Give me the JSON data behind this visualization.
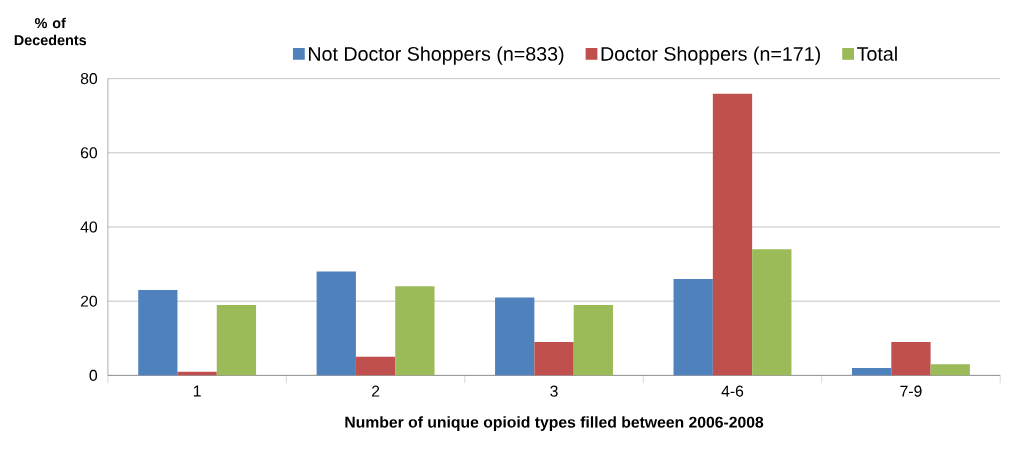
{
  "chart_data": {
    "type": "bar",
    "xlabel": "Number of unique opioid types filled between 2006-2008",
    "ylabel": "% of Decedents",
    "categories": [
      "1",
      "2",
      "3",
      "4-6",
      "7-9"
    ],
    "series": [
      {
        "name": "Not Doctor Shoppers (n=833)",
        "color": "#4f81bd",
        "values": [
          23,
          28,
          21,
          26,
          2
        ]
      },
      {
        "name": "Doctor Shoppers (n=171)",
        "color": "#c0504d",
        "values": [
          1,
          5,
          9,
          76,
          9
        ]
      },
      {
        "name": "Total",
        "color": "#9bbb59",
        "values": [
          19,
          24,
          19,
          34,
          3
        ]
      }
    ],
    "ylim": [
      0,
      80
    ],
    "yticks": [
      0,
      20,
      40,
      60,
      80
    ],
    "grid": "y",
    "legend": "top"
  }
}
